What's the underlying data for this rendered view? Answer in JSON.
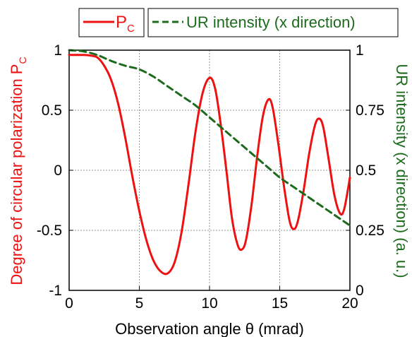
{
  "chart_data": {
    "type": "line",
    "xlabel": "Observation angle  θ (mrad)",
    "ylabel_left": "Degree of circular polarization P",
    "ylabel_left_sub": "C",
    "ylabel_right": "UR intensity (x direction) (a. u.)",
    "xlim": [
      0,
      20
    ],
    "ylim_left": [
      -1,
      1
    ],
    "ylim_right": [
      0,
      1
    ],
    "x_ticks": [
      "0",
      "5",
      "10",
      "15",
      "20"
    ],
    "y_left_ticks": [
      "-1",
      "-0.5",
      "0",
      "0.5",
      "1"
    ],
    "y_right_ticks": [
      "0",
      "0.25",
      "0.5",
      "0.75",
      "1"
    ],
    "grid": true,
    "legend_position": "top",
    "series": [
      {
        "name": "P",
        "name_sub": "C",
        "axis": "left",
        "color": "#ee1111",
        "style": "solid",
        "points": [
          [
            0.0,
            0.96
          ],
          [
            1.0,
            0.96
          ],
          [
            1.5,
            0.955
          ],
          [
            2.0,
            0.94
          ],
          [
            2.5,
            0.87
          ],
          [
            3.0,
            0.75
          ],
          [
            3.5,
            0.55
          ],
          [
            4.0,
            0.27
          ],
          [
            4.5,
            -0.05
          ],
          [
            5.0,
            -0.34
          ],
          [
            5.5,
            -0.58
          ],
          [
            6.0,
            -0.75
          ],
          [
            6.5,
            -0.84
          ],
          [
            7.0,
            -0.86
          ],
          [
            7.5,
            -0.77
          ],
          [
            8.0,
            -0.52
          ],
          [
            8.5,
            -0.12
          ],
          [
            9.0,
            0.32
          ],
          [
            9.5,
            0.64
          ],
          [
            10.0,
            0.77
          ],
          [
            10.4,
            0.68
          ],
          [
            10.8,
            0.38
          ],
          [
            11.2,
            0.0
          ],
          [
            11.6,
            -0.4
          ],
          [
            12.0,
            -0.62
          ],
          [
            12.3,
            -0.66
          ],
          [
            12.6,
            -0.58
          ],
          [
            13.0,
            -0.28
          ],
          [
            13.4,
            0.12
          ],
          [
            13.8,
            0.45
          ],
          [
            14.2,
            0.59
          ],
          [
            14.5,
            0.52
          ],
          [
            14.9,
            0.22
          ],
          [
            15.3,
            -0.13
          ],
          [
            15.7,
            -0.42
          ],
          [
            16.0,
            -0.49
          ],
          [
            16.3,
            -0.42
          ],
          [
            16.7,
            -0.17
          ],
          [
            17.1,
            0.14
          ],
          [
            17.5,
            0.37
          ],
          [
            17.8,
            0.43
          ],
          [
            18.1,
            0.36
          ],
          [
            18.5,
            0.08
          ],
          [
            18.9,
            -0.21
          ],
          [
            19.3,
            -0.36
          ],
          [
            19.6,
            -0.32
          ],
          [
            20.0,
            -0.06
          ]
        ]
      },
      {
        "name": "UR intensity (x direction)",
        "axis": "right",
        "color": "#1c6b1c",
        "style": "dashed",
        "points": [
          [
            0.0,
            1.0
          ],
          [
            1.0,
            0.995
          ],
          [
            2.0,
            0.98
          ],
          [
            3.0,
            0.955
          ],
          [
            4.0,
            0.935
          ],
          [
            5.0,
            0.92
          ],
          [
            6.0,
            0.89
          ],
          [
            7.0,
            0.85
          ],
          [
            8.0,
            0.81
          ],
          [
            9.0,
            0.77
          ],
          [
            10.0,
            0.72
          ],
          [
            11.0,
            0.67
          ],
          [
            12.0,
            0.62
          ],
          [
            13.0,
            0.57
          ],
          [
            14.0,
            0.52
          ],
          [
            15.0,
            0.47
          ],
          [
            16.0,
            0.43
          ],
          [
            17.0,
            0.39
          ],
          [
            18.0,
            0.35
          ],
          [
            19.0,
            0.31
          ],
          [
            20.0,
            0.27
          ]
        ]
      }
    ]
  }
}
